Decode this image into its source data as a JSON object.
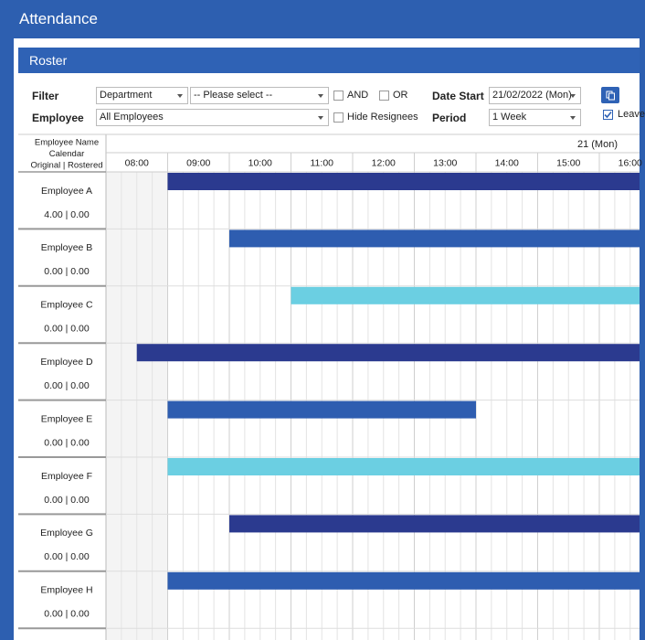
{
  "app": {
    "title": "Attendance"
  },
  "panel": {
    "title": "Roster"
  },
  "filters": {
    "filter_label": "Filter",
    "department": "Department",
    "please_select": "-- Please select --",
    "and": "AND",
    "or": "OR",
    "date_start_label": "Date Start",
    "date_start": "21/02/2022 (Mon)",
    "employee_label": "Employee",
    "employee": "All Employees",
    "hide_resignees": "Hide Resignees",
    "period_label": "Period",
    "period": "1 Week",
    "leave": "Leave"
  },
  "roster": {
    "column_header": [
      "Employee Name",
      "Calendar",
      "Original | Rostered"
    ],
    "day": "21 (Mon)",
    "times": [
      "08:00",
      "09:00",
      "10:00",
      "11:00",
      "12:00",
      "13:00",
      "14:00",
      "15:00",
      "16:00"
    ],
    "rows": [
      {
        "name": "Employee A",
        "hours": "4.00 | 0.00",
        "shift": {
          "start": 9,
          "color": "#2b3a8f"
        }
      },
      {
        "name": "Employee B",
        "hours": "0.00 | 0.00",
        "shift": {
          "start": 10,
          "color": "#2e5db0"
        }
      },
      {
        "name": "Employee C",
        "hours": "0.00 | 0.00",
        "shift": {
          "start": 11,
          "color": "#6bcfe2"
        }
      },
      {
        "name": "Employee D",
        "hours": "0.00 | 0.00",
        "shift": {
          "start": 8.5,
          "color": "#2b3a8f"
        }
      },
      {
        "name": "Employee E",
        "hours": "0.00 | 0.00",
        "shift": {
          "start": 9,
          "end": 14,
          "color": "#2e5db0"
        }
      },
      {
        "name": "Employee F",
        "hours": "0.00 | 0.00",
        "shift": {
          "start": 9,
          "color": "#6bcfe2"
        }
      },
      {
        "name": "Employee G",
        "hours": "0.00 | 0.00",
        "shift": {
          "start": 10,
          "color": "#2b3a8f"
        }
      },
      {
        "name": "Employee H",
        "hours": "0.00 | 0.00",
        "shift": {
          "start": 9,
          "color": "#2e5db0"
        }
      }
    ]
  }
}
